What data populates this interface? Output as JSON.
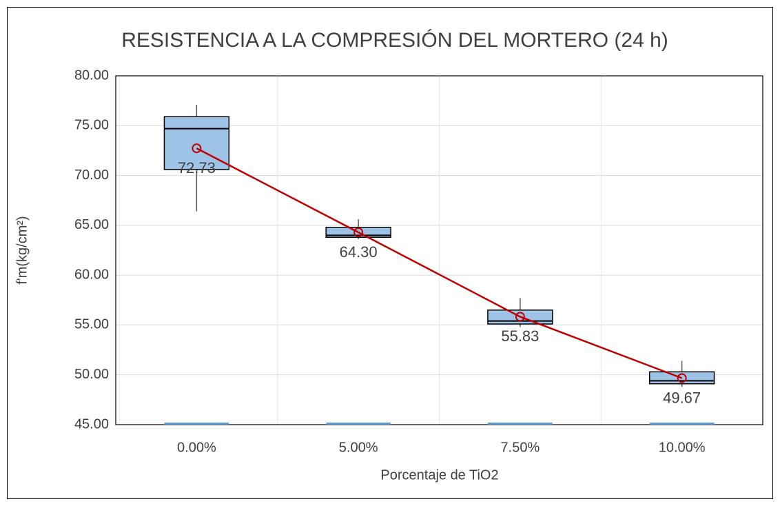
{
  "chart_data": {
    "type": "box",
    "title": "RESISTENCIA A LA COMPRESIÓN DEL MORTERO (24 h)",
    "y_label": "f'm(kg/cm²)",
    "x_label": "Porcentaje de TiO2",
    "categories": [
      "0.00%",
      "5.00%",
      "7.50%",
      "10.00%"
    ],
    "whisker_low": [
      66.4,
      63.6,
      54.8,
      48.8
    ],
    "q1": [
      70.6,
      63.8,
      55.1,
      49.1
    ],
    "median": [
      74.7,
      64.0,
      55.4,
      49.4
    ],
    "q3": [
      75.9,
      64.8,
      56.5,
      50.3
    ],
    "whisker_high": [
      77.1,
      65.6,
      57.7,
      51.4
    ],
    "box_color": "#9dc3e6",
    "mean": {
      "values": [
        72.73,
        64.3,
        55.83,
        49.67
      ],
      "value_labels": [
        "72.73",
        "64.30",
        "55.83",
        "49.67"
      ],
      "color": "#c00000"
    },
    "ylim": [
      45,
      80
    ],
    "yticks": [
      {
        "value": 45,
        "label": "45.00"
      },
      {
        "value": 50,
        "label": "50.00"
      },
      {
        "value": 55,
        "label": "55.00"
      },
      {
        "value": 60,
        "label": "60.00"
      },
      {
        "value": 65,
        "label": "65.00"
      },
      {
        "value": 70,
        "label": "70.00"
      },
      {
        "value": 75,
        "label": "75.00"
      },
      {
        "value": 80,
        "label": "80.00"
      }
    ],
    "grid": true
  }
}
